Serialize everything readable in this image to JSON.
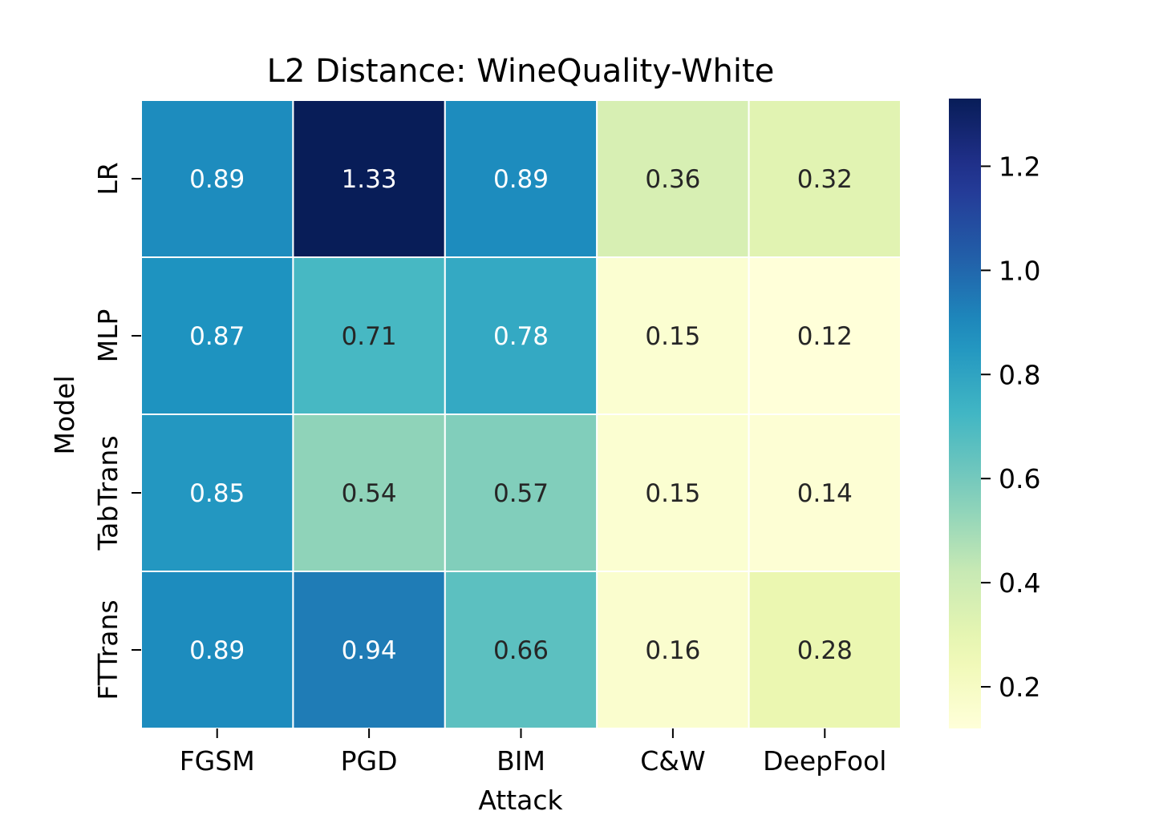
{
  "chart_data": {
    "type": "heatmap",
    "title": "L2 Distance: WineQuality-White",
    "xlabel": "Attack",
    "ylabel": "Model",
    "x_categories": [
      "FGSM",
      "PGD",
      "BIM",
      "C&W",
      "DeepFool"
    ],
    "y_categories": [
      "LR",
      "MLP",
      "TabTrans",
      "FTTrans"
    ],
    "values": [
      [
        0.89,
        1.33,
        0.89,
        0.36,
        0.32
      ],
      [
        0.87,
        0.71,
        0.78,
        0.15,
        0.12
      ],
      [
        0.85,
        0.54,
        0.57,
        0.15,
        0.14
      ],
      [
        0.89,
        0.94,
        0.66,
        0.16,
        0.28
      ]
    ],
    "colorbar": {
      "colormap": "YlGnBu",
      "range": [
        0.12,
        1.33
      ],
      "ticks": [
        "0.2",
        "0.4",
        "0.6",
        "0.8",
        "1.0",
        "1.2"
      ]
    },
    "cell_separator_color": "#ffffff"
  }
}
